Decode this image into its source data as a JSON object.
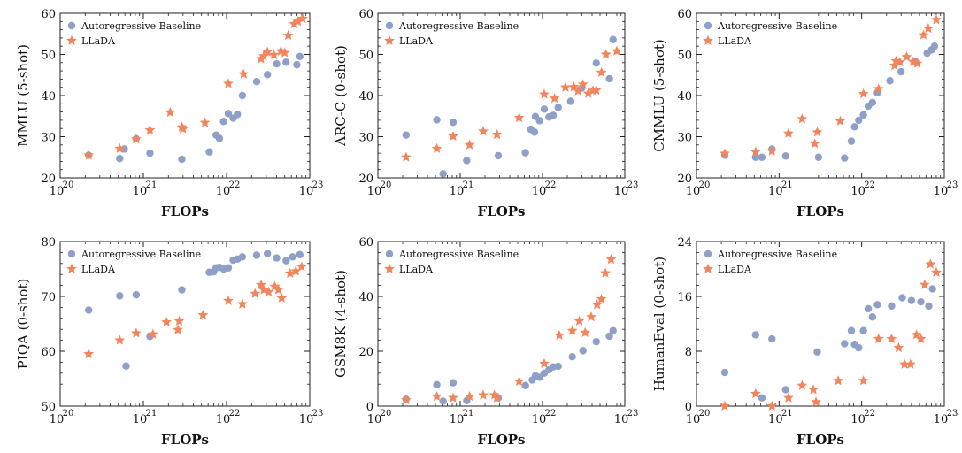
{
  "colors": {
    "autoregressive": "#8fa0c8",
    "llada": "#f2855c",
    "frame": "#222222"
  },
  "legend": {
    "autoregressive": "Autoregressive Baseline",
    "llada": "LLaDA"
  },
  "chart_data": [
    {
      "type": "scatter",
      "title": "",
      "xlabel": "FLOPs",
      "ylabel": "MMLU (5-shot)",
      "xscale": "log",
      "xlim": [
        1e+20,
        1e+23
      ],
      "ylim": [
        20,
        60
      ],
      "yticks": [
        20,
        30,
        40,
        50,
        60
      ],
      "xticks": [
        "10",
        "10",
        "10",
        "10"
      ],
      "xtick_exps": [
        "20",
        "21",
        "22",
        "23"
      ],
      "legend_position": "top-left",
      "series": [
        {
          "name": "Autoregressive Baseline",
          "x": [
            2.2e+20,
            5.2e+20,
            5.9e+20,
            8.2e+20,
            1.2e+21,
            2.9e+21,
            6.2e+21,
            7.5e+21,
            8.2e+21,
            9.2e+21,
            1.05e+22,
            1.2e+22,
            1.35e+22,
            1.55e+22,
            2.3e+22,
            3.1e+22,
            4e+22,
            5.2e+22,
            7e+22,
            7.6e+22
          ],
          "y": [
            25.5,
            24.7,
            27,
            29.5,
            26,
            24.5,
            26.3,
            30.4,
            29.6,
            33.7,
            35.6,
            34.5,
            35.4,
            40,
            43.4,
            45.1,
            47.7,
            48.1,
            47.5,
            49.5
          ]
        },
        {
          "name": "LLaDA",
          "x": [
            2.2e+20,
            5.2e+20,
            8.2e+20,
            1.2e+21,
            2.1e+21,
            2.9e+21,
            3e+21,
            5.5e+21,
            1.05e+22,
            1.6e+22,
            2.6e+22,
            2.8e+22,
            3.1e+22,
            3.7e+22,
            4.5e+22,
            5e+22,
            5.5e+22,
            6.5e+22,
            7.2e+22,
            8.2e+22
          ],
          "y": [
            25.5,
            27.1,
            29.4,
            31.6,
            35.9,
            32.3,
            31.9,
            33.4,
            42.9,
            45.2,
            48.9,
            49.6,
            50.6,
            49.9,
            50.8,
            50.4,
            54.6,
            57.4,
            58,
            58.7
          ]
        }
      ]
    },
    {
      "type": "scatter",
      "title": "",
      "xlabel": "FLOPs",
      "ylabel": "ARC-C (0-shot)",
      "xscale": "log",
      "xlim": [
        1e+20,
        1e+23
      ],
      "ylim": [
        20,
        60
      ],
      "yticks": [
        20,
        30,
        40,
        50,
        60
      ],
      "xticks": [
        "10",
        "10",
        "10",
        "10"
      ],
      "xtick_exps": [
        "20",
        "21",
        "22",
        "23"
      ],
      "legend_position": "top-left",
      "series": [
        {
          "name": "Autoregressive Baseline",
          "x": [
            2.2e+20,
            5.2e+20,
            6.2e+20,
            8.2e+20,
            1.2e+21,
            2.9e+21,
            6.2e+21,
            7.2e+21,
            8e+21,
            8.2e+21,
            9.2e+21,
            1.05e+22,
            1.2e+22,
            1.35e+22,
            1.55e+22,
            2.2e+22,
            3e+22,
            4.5e+22,
            6.5e+22,
            7.2e+22
          ],
          "y": [
            30.4,
            34.1,
            21,
            33.5,
            24.2,
            25.4,
            26.1,
            31.8,
            31.1,
            34.9,
            33.9,
            36.7,
            34.8,
            35.2,
            37.1,
            38.6,
            41.8,
            47.9,
            44.1,
            53.6
          ]
        },
        {
          "name": "LLaDA",
          "x": [
            2.2e+20,
            5.2e+20,
            8.2e+20,
            1.3e+21,
            1.9e+21,
            2.8e+21,
            5.2e+21,
            1.05e+22,
            1.4e+22,
            1.9e+22,
            2.4e+22,
            2.7e+22,
            3.1e+22,
            3.6e+22,
            4.1e+22,
            4.5e+22,
            5.2e+22,
            5.9e+22,
            8e+22
          ],
          "y": [
            25,
            27.1,
            30.1,
            28,
            31.3,
            30.5,
            34.6,
            40.3,
            39.3,
            42,
            42.1,
            41.1,
            42.7,
            40.5,
            41.2,
            41.3,
            45.6,
            50,
            50.8
          ]
        }
      ]
    },
    {
      "type": "scatter",
      "title": "",
      "xlabel": "FLOPs",
      "ylabel": "CMMLU (5-shot)",
      "xscale": "log",
      "xlim": [
        1e+20,
        1e+23
      ],
      "ylim": [
        20,
        60
      ],
      "yticks": [
        20,
        30,
        40,
        50,
        60
      ],
      "xticks": [
        "10",
        "10",
        "10",
        "10"
      ],
      "xtick_exps": [
        "20",
        "21",
        "22",
        "23"
      ],
      "legend_position": "top-left",
      "series": [
        {
          "name": "Autoregressive Baseline",
          "x": [
            2.2e+20,
            5.2e+20,
            6.2e+20,
            8.2e+20,
            1.2e+21,
            3e+21,
            6.2e+21,
            7.5e+21,
            8.2e+21,
            9.2e+21,
            1.05e+22,
            1.2e+22,
            1.35e+22,
            1.55e+22,
            2.2e+22,
            3e+22,
            4.5e+22,
            6.2e+22,
            7e+22,
            7.6e+22
          ],
          "y": [
            25.5,
            25,
            25,
            27,
            25.3,
            25,
            24.8,
            28.9,
            32.4,
            34,
            35.3,
            37.4,
            38.3,
            40.7,
            43.6,
            45.8,
            48.2,
            50.3,
            51.1,
            52
          ]
        },
        {
          "name": "LLaDA",
          "x": [
            2.2e+20,
            5.2e+20,
            8.2e+20,
            1.3e+21,
            1.9e+21,
            2.7e+21,
            2.9e+21,
            5.5e+21,
            1.05e+22,
            1.6e+22,
            2.5e+22,
            2.6e+22,
            2.9e+22,
            3.5e+22,
            4.2e+22,
            4.7e+22,
            5.6e+22,
            6.4e+22,
            8e+22
          ],
          "y": [
            25.9,
            26.3,
            26.5,
            30.8,
            34.3,
            28.3,
            31.1,
            33.8,
            40.4,
            41.6,
            47.3,
            48.4,
            48.1,
            49.4,
            48.2,
            47.8,
            54.7,
            56.3,
            58.4
          ]
        }
      ]
    },
    {
      "type": "scatter",
      "title": "",
      "xlabel": "FLOPs",
      "ylabel": "PIQA (0-shot)",
      "xscale": "log",
      "xlim": [
        1e+20,
        1e+23
      ],
      "ylim": [
        50,
        80
      ],
      "yticks": [
        50,
        60,
        70,
        80
      ],
      "xticks": [
        "10",
        "10",
        "10",
        "10"
      ],
      "xtick_exps": [
        "20",
        "21",
        "22",
        "23"
      ],
      "legend_position": "top-left",
      "series": [
        {
          "name": "Autoregressive Baseline",
          "x": [
            2.2e+20,
            5.2e+20,
            6.2e+20,
            8.2e+20,
            1.2e+21,
            2.9e+21,
            6.2e+21,
            7e+21,
            7.5e+21,
            8.2e+21,
            9.2e+21,
            1.05e+22,
            1.2e+22,
            1.35e+22,
            1.55e+22,
            2.3e+22,
            3.1e+22,
            4e+22,
            5.2e+22,
            6.2e+22,
            7.6e+22
          ],
          "y": [
            67.5,
            70.1,
            57.3,
            70.3,
            62.7,
            71.2,
            74.4,
            74.5,
            75.2,
            75.3,
            75,
            75.2,
            76.6,
            76.8,
            77.2,
            77.5,
            77.8,
            77,
            76.5,
            77.2,
            77.6
          ]
        },
        {
          "name": "LLaDA",
          "x": [
            2.2e+20,
            5.2e+20,
            8.2e+20,
            1.3e+21,
            1.9e+21,
            2.6e+21,
            2.7e+21,
            5.2e+21,
            1.05e+22,
            1.55e+22,
            2.2e+22,
            2.6e+22,
            2.8e+22,
            3.2e+22,
            3.8e+22,
            4.2e+22,
            4.6e+22,
            5.8e+22,
            6.8e+22,
            8e+22
          ],
          "y": [
            59.5,
            62,
            63.3,
            63.1,
            65.3,
            63.9,
            65.5,
            66.6,
            69.2,
            68.6,
            70.5,
            72.1,
            71.2,
            70.8,
            71.8,
            71.2,
            69.7,
            74.2,
            74.6,
            75.4
          ]
        }
      ]
    },
    {
      "type": "scatter",
      "title": "",
      "xlabel": "FLOPs",
      "ylabel": "GSM8K (4-shot)",
      "xscale": "log",
      "xlim": [
        1e+20,
        1e+23
      ],
      "ylim": [
        0,
        60
      ],
      "yticks": [
        0,
        20,
        40,
        60
      ],
      "xticks": [
        "10",
        "10",
        "10",
        "10"
      ],
      "xtick_exps": [
        "20",
        "21",
        "22",
        "23"
      ],
      "legend_position": "top-left",
      "series": [
        {
          "name": "Autoregressive Baseline",
          "x": [
            2.2e+20,
            5.2e+20,
            6.2e+20,
            8.2e+20,
            1.2e+21,
            2.9e+21,
            6.2e+21,
            7.5e+21,
            8.2e+21,
            9.2e+21,
            1.05e+22,
            1.2e+22,
            1.35e+22,
            1.55e+22,
            2.3e+22,
            3.1e+22,
            4.5e+22,
            6.5e+22,
            7.2e+22
          ],
          "y": [
            2.5,
            7.8,
            1.8,
            8.5,
            2,
            3,
            7.5,
            9.5,
            11,
            10.5,
            12,
            13.2,
            14.3,
            14.5,
            18,
            20.2,
            23.5,
            25.5,
            27.5
          ]
        },
        {
          "name": "LLaDA",
          "x": [
            2.2e+20,
            5.2e+20,
            8.2e+20,
            1.3e+21,
            1.9e+21,
            2.6e+21,
            2.8e+21,
            5.2e+21,
            1.05e+22,
            1.6e+22,
            2.3e+22,
            2.8e+22,
            3.3e+22,
            3.9e+22,
            4.6e+22,
            5.2e+22,
            5.8e+22,
            6.8e+22
          ],
          "y": [
            2.2,
            3.5,
            3,
            3.5,
            4,
            4,
            3,
            9,
            15.5,
            25.8,
            27.5,
            31,
            26.8,
            32.5,
            37,
            39,
            48.5,
            53.5
          ]
        }
      ]
    },
    {
      "type": "scatter",
      "title": "",
      "xlabel": "FLOPs",
      "ylabel": "HumanEval (0-shot)",
      "xscale": "log",
      "xlim": [
        1e+20,
        1e+23
      ],
      "ylim": [
        0,
        24
      ],
      "yticks": [
        0,
        8,
        16,
        24
      ],
      "xticks": [
        "10",
        "10",
        "10",
        "10"
      ],
      "xtick_exps": [
        "20",
        "21",
        "22",
        "23"
      ],
      "legend_position": "top-left",
      "series": [
        {
          "name": "Autoregressive Baseline",
          "x": [
            2.2e+20,
            5.2e+20,
            6.2e+20,
            8.2e+20,
            1.2e+21,
            2.9e+21,
            6.2e+21,
            7.5e+21,
            8.2e+21,
            9.2e+21,
            1.05e+22,
            1.2e+22,
            1.35e+22,
            1.55e+22,
            2.3e+22,
            3.1e+22,
            4e+22,
            5.2e+22,
            6.5e+22,
            7.2e+22
          ],
          "y": [
            4.9,
            10.4,
            1.2,
            9.8,
            2.4,
            7.9,
            9.1,
            11,
            9,
            8.5,
            11,
            14.2,
            13,
            14.8,
            14.6,
            15.8,
            15.4,
            15.2,
            14.6,
            17.1
          ]
        },
        {
          "name": "LLaDA",
          "x": [
            2.2e+20,
            5.2e+20,
            8.2e+20,
            1.3e+21,
            1.9e+21,
            2.6e+21,
            2.8e+21,
            5.2e+21,
            1.05e+22,
            1.6e+22,
            2.3e+22,
            2.8e+22,
            3.3e+22,
            3.9e+22,
            4.6e+22,
            5.2e+22,
            5.8e+22,
            6.8e+22,
            8e+22
          ],
          "y": [
            0,
            1.8,
            0,
            1.2,
            3,
            2.4,
            0.6,
            3.7,
            3.7,
            9.8,
            9.8,
            8.5,
            6.1,
            6.1,
            10.4,
            9.8,
            17.7,
            20.7,
            19.5
          ]
        }
      ]
    }
  ]
}
